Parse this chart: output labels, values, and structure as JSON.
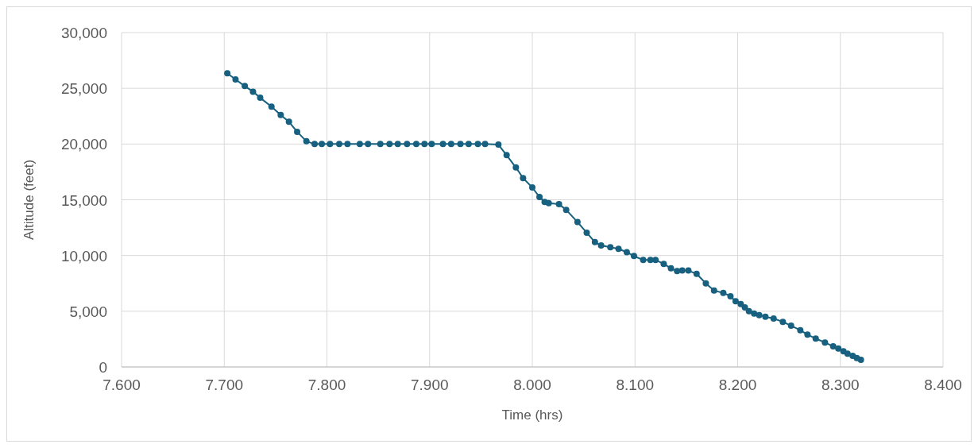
{
  "chart_data": {
    "type": "line",
    "xlabel": "Time (hrs)",
    "ylabel": "Altitude (feet)",
    "xlim": [
      7.6,
      8.4
    ],
    "xticks": [
      {
        "value": 7.6,
        "label": "7.600"
      },
      {
        "value": 7.7,
        "label": "7.700"
      },
      {
        "value": 7.8,
        "label": "7.800"
      },
      {
        "value": 7.9,
        "label": "7.900"
      },
      {
        "value": 8.0,
        "label": "8.000"
      },
      {
        "value": 8.1,
        "label": "8.100"
      },
      {
        "value": 8.2,
        "label": "8.200"
      },
      {
        "value": 8.3,
        "label": "8.300"
      },
      {
        "value": 8.4,
        "label": "8.400"
      }
    ],
    "ylim": [
      0,
      30000
    ],
    "yticks": [
      {
        "value": 0,
        "label": "0"
      },
      {
        "value": 5000,
        "label": "5,000"
      },
      {
        "value": 10000,
        "label": "10,000"
      },
      {
        "value": 15000,
        "label": "15,000"
      },
      {
        "value": 20000,
        "label": "20,000"
      },
      {
        "value": 25000,
        "label": "25,000"
      },
      {
        "value": 30000,
        "label": "30,000"
      }
    ],
    "grid": true,
    "marker": "circle",
    "line_style": "solid",
    "x": [
      7.703,
      7.711,
      7.72,
      7.728,
      7.735,
      7.746,
      7.755,
      7.763,
      7.771,
      7.78,
      7.788,
      7.795,
      7.803,
      7.812,
      7.82,
      7.832,
      7.84,
      7.852,
      7.861,
      7.869,
      7.878,
      7.887,
      7.895,
      7.902,
      7.913,
      7.921,
      7.93,
      7.938,
      7.947,
      7.954,
      7.967,
      7.975,
      7.984,
      7.991,
      8.0,
      8.007,
      8.012,
      8.016,
      8.026,
      8.033,
      8.044,
      8.053,
      8.061,
      8.067,
      8.076,
      8.084,
      8.092,
      8.099,
      8.108,
      8.115,
      8.12,
      8.128,
      8.135,
      8.141,
      8.146,
      8.152,
      8.16,
      8.169,
      8.177,
      8.186,
      8.193,
      8.198,
      8.203,
      8.207,
      8.211,
      8.216,
      8.221,
      8.227,
      8.235,
      8.244,
      8.252,
      8.261,
      8.268,
      8.276,
      8.285,
      8.293,
      8.298,
      8.303,
      8.307,
      8.312,
      8.316,
      8.32
    ],
    "series": [
      {
        "color": "#17607f",
        "values": [
          26350,
          25800,
          25200,
          24700,
          24150,
          23350,
          22600,
          22000,
          21100,
          20250,
          20000,
          20000,
          20000,
          20000,
          20000,
          20000,
          20000,
          20000,
          20000,
          20000,
          20000,
          20000,
          20000,
          20000,
          20000,
          20000,
          20000,
          20000,
          20000,
          20000,
          19950,
          19000,
          17900,
          16950,
          16100,
          15250,
          14800,
          14700,
          14600,
          14100,
          13000,
          12050,
          11200,
          10900,
          10750,
          10600,
          10300,
          9950,
          9600,
          9600,
          9600,
          9250,
          8850,
          8600,
          8650,
          8650,
          8350,
          7500,
          6850,
          6650,
          6350,
          5900,
          5650,
          5350,
          5000,
          4800,
          4650,
          4500,
          4350,
          4050,
          3700,
          3300,
          2900,
          2550,
          2200,
          1850,
          1650,
          1400,
          1200,
          1000,
          800,
          650
        ]
      }
    ]
  }
}
